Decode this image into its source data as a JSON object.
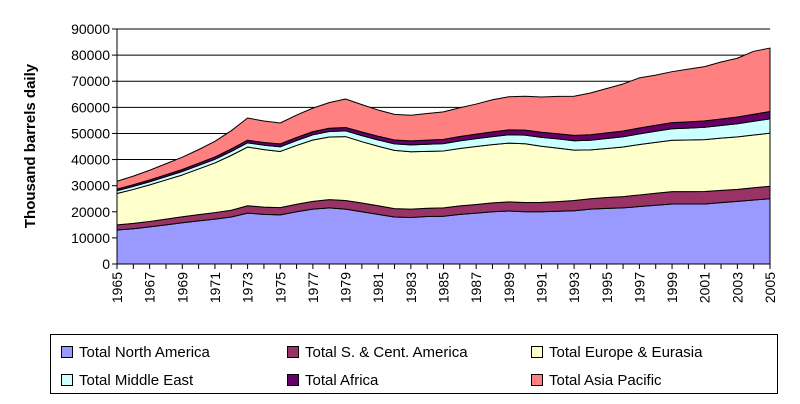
{
  "chart_data": {
    "type": "area",
    "stacked": true,
    "title": "",
    "xlabel": "",
    "ylabel": "Thousand barrels daily",
    "ylim": [
      0,
      90000
    ],
    "yticks": [
      0,
      10000,
      20000,
      30000,
      40000,
      50000,
      60000,
      70000,
      80000,
      90000
    ],
    "ytick_labels": [
      "0",
      "10000",
      "20000",
      "30000",
      "40000",
      "50000",
      "60000",
      "70000",
      "80000",
      "90000"
    ],
    "xtick_labels": [
      "1965",
      "1967",
      "1969",
      "1971",
      "1973",
      "1975",
      "1977",
      "1979",
      "1981",
      "1983",
      "1985",
      "1987",
      "1989",
      "1991",
      "1993",
      "1995",
      "1997",
      "1999",
      "2001",
      "2003",
      "2005"
    ],
    "grid": "horizontal",
    "legend_position": "bottom",
    "x": [
      1965,
      1966,
      1967,
      1968,
      1969,
      1970,
      1971,
      1972,
      1973,
      1974,
      1975,
      1976,
      1977,
      1978,
      1979,
      1980,
      1981,
      1982,
      1983,
      1984,
      1985,
      1986,
      1987,
      1988,
      1989,
      1990,
      1991,
      1992,
      1993,
      1994,
      1995,
      1996,
      1997,
      1998,
      1999,
      2000,
      2001,
      2002,
      2003,
      2004,
      2005
    ],
    "series": [
      {
        "name": "Total North America",
        "color": "#9999ff",
        "values": [
          13000,
          13500,
          14200,
          15000,
          15800,
          16500,
          17200,
          18000,
          19500,
          19000,
          18800,
          20000,
          21000,
          21500,
          21000,
          20000,
          19000,
          18000,
          17800,
          18200,
          18300,
          19000,
          19500,
          20000,
          20300,
          20000,
          20000,
          20200,
          20400,
          21000,
          21300,
          21500,
          22000,
          22500,
          23000,
          23000,
          23000,
          23500,
          24000,
          24500,
          25000
        ]
      },
      {
        "name": "Total S. & Cent. America",
        "color": "#993366",
        "values": [
          2000,
          2050,
          2100,
          2200,
          2300,
          2400,
          2500,
          2600,
          2800,
          2800,
          2800,
          2900,
          3000,
          3150,
          3300,
          3350,
          3300,
          3200,
          3200,
          3150,
          3200,
          3250,
          3300,
          3400,
          3500,
          3550,
          3600,
          3700,
          3900,
          4000,
          4150,
          4300,
          4450,
          4600,
          4700,
          4700,
          4750,
          4700,
          4600,
          4700,
          4800
        ]
      },
      {
        "name": "Total Europe & Eurasia",
        "color": "#ffffcc",
        "values": [
          12000,
          13000,
          14000,
          15000,
          16000,
          17500,
          19000,
          21000,
          22500,
          22000,
          21500,
          22500,
          23500,
          24000,
          24500,
          23500,
          22800,
          22300,
          22000,
          21800,
          21800,
          22000,
          22200,
          22300,
          22500,
          22500,
          21500,
          20500,
          19300,
          18700,
          18800,
          19000,
          19300,
          19500,
          19700,
          19800,
          19900,
          20000,
          20100,
          20200,
          20300
        ]
      },
      {
        "name": "Total Middle East",
        "color": "#ccffff",
        "values": [
          1100,
          1150,
          1200,
          1250,
          1300,
          1350,
          1400,
          1500,
          1600,
          1700,
          1800,
          1900,
          2000,
          2100,
          2200,
          2300,
          2400,
          2500,
          2600,
          2700,
          2800,
          2900,
          3000,
          3100,
          3200,
          3300,
          3400,
          3500,
          3600,
          3700,
          3800,
          3950,
          4100,
          4250,
          4400,
          4550,
          4700,
          4850,
          5000,
          5250,
          5500
        ]
      },
      {
        "name": "Total Africa",
        "color": "#660066",
        "values": [
          600,
          650,
          700,
          750,
          800,
          850,
          900,
          950,
          1000,
          1050,
          1100,
          1150,
          1200,
          1250,
          1300,
          1400,
          1450,
          1500,
          1550,
          1600,
          1650,
          1700,
          1750,
          1800,
          1850,
          1900,
          1950,
          2000,
          2050,
          2100,
          2150,
          2200,
          2250,
          2300,
          2350,
          2400,
          2450,
          2500,
          2600,
          2700,
          2800
        ]
      },
      {
        "name": "Total Asia Pacific",
        "color": "#ff8080",
        "values": [
          3000,
          3300,
          3700,
          4200,
          4700,
          5200,
          6000,
          7000,
          8500,
          8200,
          8000,
          8600,
          9000,
          9800,
          10900,
          10500,
          10000,
          9800,
          9800,
          10200,
          10500,
          11000,
          11500,
          12300,
          12700,
          13000,
          13500,
          14300,
          15000,
          16000,
          17000,
          18000,
          19200,
          19200,
          19500,
          20200,
          20800,
          21800,
          22500,
          24100,
          24300
        ]
      }
    ]
  }
}
